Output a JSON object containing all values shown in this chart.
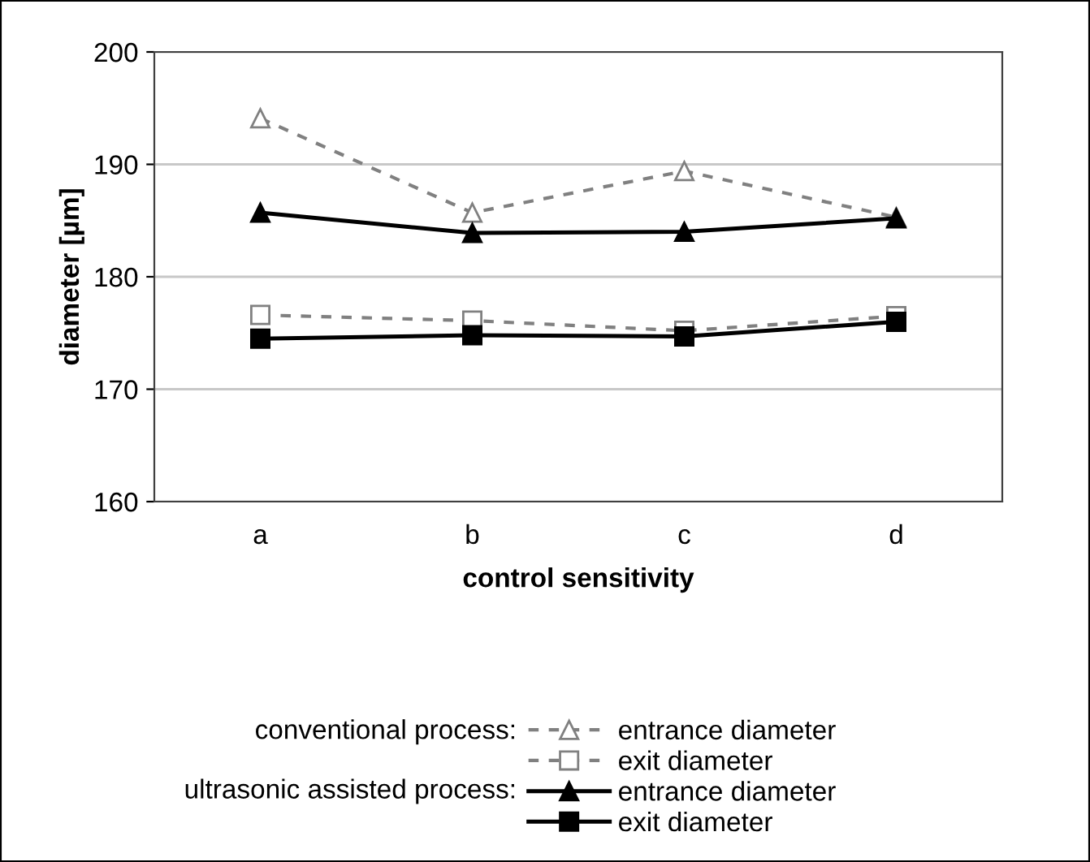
{
  "chart_data": {
    "type": "line",
    "xlabel": "control sensitivity",
    "ylabel": "diameter [µm]",
    "categories": [
      "a",
      "b",
      "c",
      "d"
    ],
    "series": [
      {
        "name": "entrance diameter",
        "color": "#808080",
        "marker": "triangle",
        "line_style": "dashed",
        "values": [
          194.1,
          185.7,
          189.4,
          185.3
        ]
      },
      {
        "name": "exit diameter",
        "color": "#808080",
        "marker": "square",
        "line_style": "dashed",
        "values": [
          176.6,
          176.1,
          175.2,
          176.5
        ]
      },
      {
        "name": "entrance diameter",
        "color": "#000000",
        "marker": "triangle",
        "line_style": "solid",
        "values": [
          185.7,
          183.9,
          184.0,
          185.2
        ]
      },
      {
        "name": "exit diameter",
        "color": "#000000",
        "marker": "square",
        "line_style": "solid",
        "values": [
          174.5,
          174.8,
          174.7,
          176.0
        ]
      }
    ],
    "annotations": [
      "conventional process:",
      "ultrasonic assisted process:"
    ],
    "ylim": [
      160,
      200
    ],
    "yticks": [
      160,
      170,
      180,
      190,
      200
    ],
    "grid": "y",
    "legend": "bottom"
  }
}
